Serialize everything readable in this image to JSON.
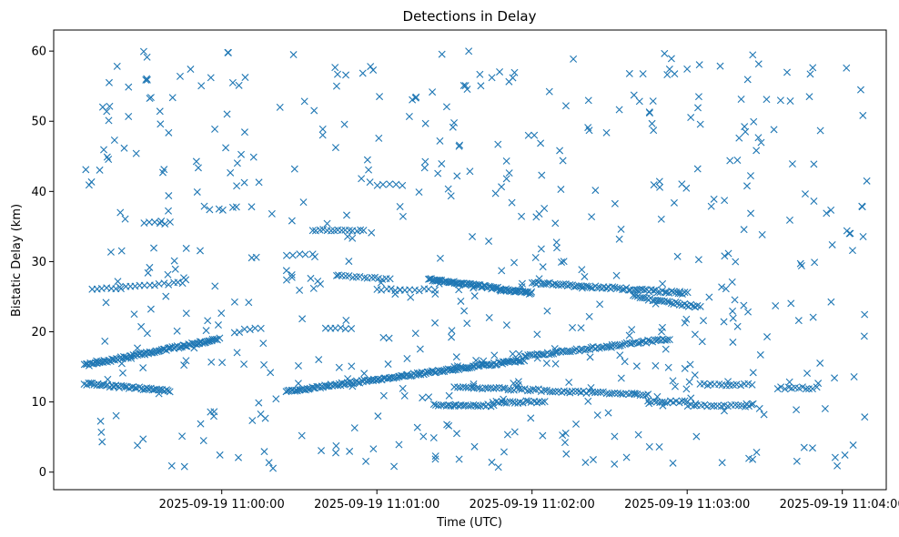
{
  "chart_data": {
    "type": "scatter",
    "title": "Detections in Delay",
    "xlabel": "Time (UTC)",
    "ylabel": "Bistatic Delay (km)",
    "x_is_time": true,
    "xlim": [
      "2025-09-19 10:58:55",
      "2025-09-19 11:04:17"
    ],
    "ylim": [
      -2.5,
      63
    ],
    "xticks": [
      "2025-09-19 11:00:00",
      "2025-09-19 11:01:00",
      "2025-09-19 11:02:00",
      "2025-09-19 11:03:00",
      "2025-09-19 11:04:00"
    ],
    "yticks": [
      0,
      10,
      20,
      30,
      40,
      50,
      60
    ],
    "grid": false,
    "marker": "x",
    "marker_color": "#1f77b4",
    "tracks": [
      {
        "start": "2025-09-19 10:59:07",
        "end": "2025-09-19 10:59:59",
        "y_start": 15.2,
        "y_end": 19.0,
        "count": 90
      },
      {
        "start": "2025-09-19 10:59:07",
        "end": "2025-09-19 10:59:40",
        "y_start": 12.6,
        "y_end": 11.6,
        "count": 45
      },
      {
        "start": "2025-09-19 11:00:25",
        "end": "2025-09-19 11:01:57",
        "y_start": 11.5,
        "y_end": 16.0,
        "count": 150
      },
      {
        "start": "2025-09-19 11:01:57",
        "end": "2025-09-19 11:02:53",
        "y_start": 16.5,
        "y_end": 19.0,
        "count": 70
      },
      {
        "start": "2025-09-19 11:01:20",
        "end": "2025-09-19 11:02:00",
        "y_start": 27.5,
        "y_end": 25.5,
        "count": 80
      },
      {
        "start": "2025-09-19 11:02:00",
        "end": "2025-09-19 11:03:00",
        "y_start": 27.0,
        "y_end": 25.5,
        "count": 70
      },
      {
        "start": "2025-09-19 11:02:40",
        "end": "2025-09-19 11:03:05",
        "y_start": 25.0,
        "y_end": 23.5,
        "count": 30
      },
      {
        "start": "2025-09-19 11:01:30",
        "end": "2025-09-19 11:02:45",
        "y_start": 12.2,
        "y_end": 11.0,
        "count": 70
      },
      {
        "start": "2025-09-19 11:01:22",
        "end": "2025-09-19 11:01:45",
        "y_start": 9.5,
        "y_end": 9.5,
        "count": 25
      },
      {
        "start": "2025-09-19 11:01:45",
        "end": "2025-09-19 11:02:05",
        "y_start": 10.0,
        "y_end": 10.0,
        "count": 20
      },
      {
        "start": "2025-09-19 11:02:45",
        "end": "2025-09-19 11:03:00",
        "y_start": 10.0,
        "y_end": 10.0,
        "count": 15
      },
      {
        "start": "2025-09-19 11:03:00",
        "end": "2025-09-19 11:03:25",
        "y_start": 9.5,
        "y_end": 9.5,
        "count": 20
      },
      {
        "start": "2025-09-19 11:03:05",
        "end": "2025-09-19 11:03:25",
        "y_start": 12.5,
        "y_end": 12.5,
        "count": 15
      },
      {
        "start": "2025-09-19 11:03:35",
        "end": "2025-09-19 11:03:50",
        "y_start": 12.0,
        "y_end": 12.0,
        "count": 12
      },
      {
        "start": "2025-09-19 11:00:35",
        "end": "2025-09-19 11:00:55",
        "y_start": 34.5,
        "y_end": 34.5,
        "count": 15
      },
      {
        "start": "2025-09-19 11:00:45",
        "end": "2025-09-19 11:01:05",
        "y_start": 28.0,
        "y_end": 27.5,
        "count": 15
      },
      {
        "start": "2025-09-19 11:01:00",
        "end": "2025-09-19 11:01:20",
        "y_start": 26.0,
        "y_end": 26.0,
        "count": 12
      },
      {
        "start": "2025-09-19 10:59:10",
        "end": "2025-09-19 10:59:45",
        "y_start": 26.0,
        "y_end": 27.0,
        "count": 20
      },
      {
        "start": "2025-09-19 10:59:30",
        "end": "2025-09-19 10:59:40",
        "y_start": 35.5,
        "y_end": 35.5,
        "count": 6
      },
      {
        "start": "2025-09-19 11:00:05",
        "end": "2025-09-19 11:00:15",
        "y_start": 20.0,
        "y_end": 20.5,
        "count": 6
      },
      {
        "start": "2025-09-19 11:00:25",
        "end": "2025-09-19 11:00:35",
        "y_start": 31.0,
        "y_end": 31.0,
        "count": 5
      },
      {
        "start": "2025-09-19 11:00:40",
        "end": "2025-09-19 11:00:50",
        "y_start": 20.5,
        "y_end": 20.5,
        "count": 6
      },
      {
        "start": "2025-09-19 11:01:00",
        "end": "2025-09-19 11:01:10",
        "y_start": 41.0,
        "y_end": 41.0,
        "count": 5
      }
    ],
    "noise": {
      "start": "2025-09-19 10:59:07",
      "end": "2025-09-19 11:04:10",
      "y_min": 0.5,
      "y_max": 60,
      "count": 560,
      "seed": 7
    }
  }
}
